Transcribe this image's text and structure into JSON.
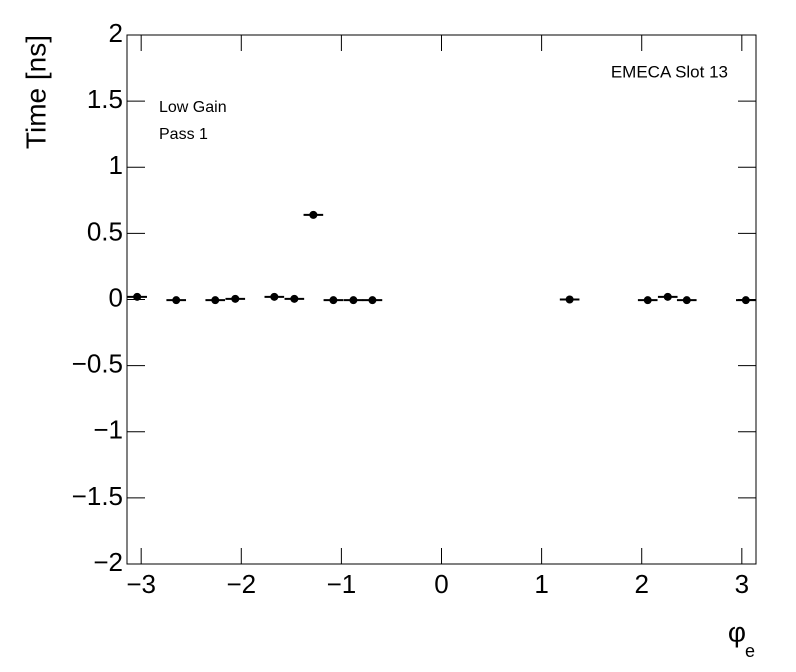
{
  "chart_data": {
    "type": "scatter",
    "title": "EMECA Slot 13",
    "annotations": [
      "Low Gain",
      "Pass 1"
    ],
    "ylabel": "Time [ns]",
    "xlabel": "φ",
    "xlabel_sub": "e",
    "x": [
      -3.04,
      -2.65,
      -2.26,
      -2.06,
      -1.67,
      -1.47,
      -1.28,
      -1.08,
      -0.88,
      -0.69,
      1.28,
      2.06,
      2.26,
      2.45,
      3.04
    ],
    "values": [
      0.02,
      -0.005,
      -0.005,
      0.005,
      0.02,
      0.005,
      0.64,
      -0.005,
      -0.005,
      -0.005,
      0.0,
      -0.005,
      0.02,
      -0.005,
      -0.005
    ],
    "xerr": [
      0.098,
      0.098,
      0.098,
      0.098,
      0.098,
      0.098,
      0.098,
      0.098,
      0.098,
      0.098,
      0.098,
      0.098,
      0.098,
      0.098,
      0.098
    ],
    "color": "#000000",
    "xlim": [
      -3.1416,
      3.1416
    ],
    "ylim": [
      -2,
      2
    ],
    "xticks": [
      {
        "value": -3,
        "label": "−3"
      },
      {
        "value": -2,
        "label": "−2"
      },
      {
        "value": -1,
        "label": "−1"
      },
      0,
      1,
      2,
      3
    ],
    "yticks": [
      {
        "value": -2,
        "label": "−2"
      },
      {
        "value": -1.5,
        "label": "−1.5"
      },
      {
        "value": -1,
        "label": "−1"
      },
      {
        "value": -0.5,
        "label": "−0.5"
      },
      0,
      0.5,
      1,
      1.5,
      2
    ]
  }
}
